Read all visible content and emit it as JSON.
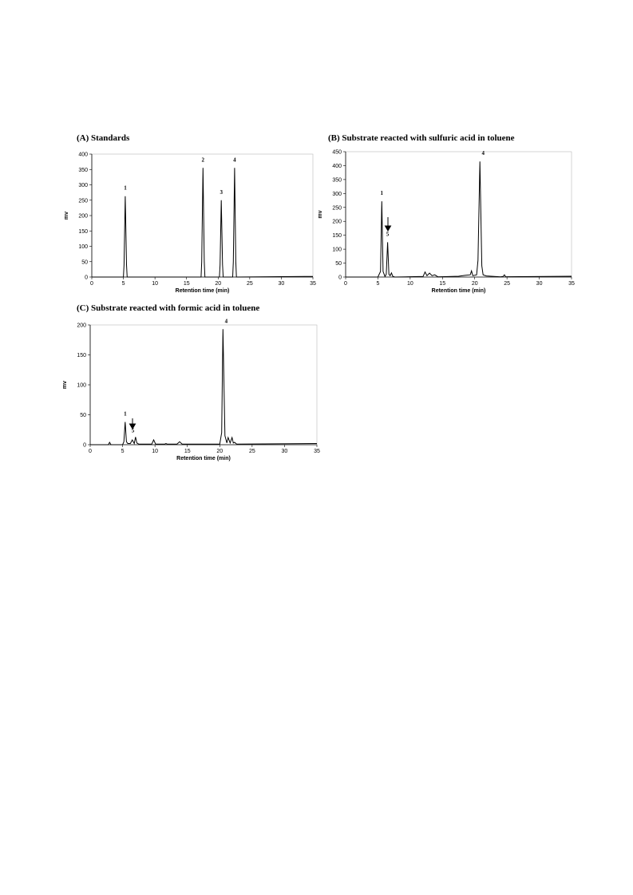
{
  "chart_data": [
    {
      "type": "line",
      "title": "(A) Standards",
      "xlabel": "Retention time (min)",
      "ylabel": "mv",
      "x": [
        0,
        5,
        5.1,
        5.3,
        5.5,
        5.6,
        17.3,
        17.4,
        17.6,
        17.8,
        17.9,
        20.2,
        20.3,
        20.5,
        20.7,
        20.8,
        22.3,
        22.4,
        22.6,
        22.8,
        22.9,
        35
      ],
      "values": [
        0,
        0,
        40,
        263,
        40,
        0,
        0,
        50,
        355,
        50,
        0,
        0,
        40,
        250,
        40,
        0,
        0,
        50,
        355,
        50,
        0,
        2
      ],
      "xlim": [
        0,
        35
      ],
      "ylim": [
        0,
        400
      ],
      "xticks": [
        0,
        5,
        10,
        15,
        20,
        25,
        30,
        35
      ],
      "yticks": [
        0,
        50,
        100,
        150,
        200,
        250,
        300,
        350,
        400
      ],
      "annotations": [
        {
          "label": "1",
          "x": 5.3,
          "y": 263
        },
        {
          "label": "2",
          "x": 17.6,
          "y": 355
        },
        {
          "label": "3",
          "x": 20.5,
          "y": 250
        },
        {
          "label": "4",
          "x": 22.6,
          "y": 355
        }
      ]
    },
    {
      "type": "line",
      "title": "(B) Substrate reacted with sulfuric acid in toluene",
      "xlabel": "Retention time (min)",
      "ylabel": "mv",
      "x": [
        0,
        5,
        5.4,
        5.6,
        5.8,
        6.1,
        6.3,
        6.5,
        6.7,
        6.9,
        7.1,
        7.3,
        7.6,
        12,
        12.3,
        12.6,
        13,
        13.4,
        13.8,
        14.3,
        17.5,
        18.5,
        19.3,
        19.5,
        19.7,
        20.3,
        20.5,
        20.8,
        21.1,
        21.3,
        21.8,
        24,
        24.4,
        24.6,
        24.8,
        35
      ],
      "values": [
        0,
        0,
        20,
        272,
        20,
        2,
        10,
        125,
        10,
        5,
        15,
        3,
        0,
        2,
        18,
        5,
        14,
        5,
        8,
        1,
        3,
        6,
        8,
        22,
        5,
        8,
        60,
        415,
        40,
        8,
        4,
        1,
        2,
        8,
        1,
        3
      ],
      "xlim": [
        0,
        35
      ],
      "ylim": [
        0,
        450
      ],
      "xticks": [
        0,
        5,
        10,
        15,
        20,
        25,
        30,
        35
      ],
      "yticks": [
        0,
        50,
        100,
        150,
        200,
        250,
        300,
        350,
        400,
        450
      ],
      "annotations": [
        {
          "label": "1",
          "x": 5.6,
          "y": 272
        },
        {
          "label": "5",
          "x": 6.5,
          "y": 125
        },
        {
          "label": "4",
          "x": 21.3,
          "y": 415
        }
      ]
    },
    {
      "type": "line",
      "title": "(C) Substrate reacted with formic acid in toluene",
      "xlabel": "Retention time (min)",
      "ylabel": "mv",
      "x": [
        0,
        2.8,
        3,
        3.2,
        5,
        5.2,
        5.4,
        5.6,
        5.8,
        6.2,
        6.5,
        6.8,
        7,
        7.2,
        7.5,
        9.5,
        9.8,
        10.1,
        11.5,
        11.7,
        11.9,
        13.4,
        13.8,
        14.2,
        20,
        20.3,
        20.5,
        20.8,
        21.1,
        21.3,
        21.6,
        21.9,
        22.1,
        22.3,
        22.6,
        35
      ],
      "values": [
        0,
        0,
        4,
        0,
        0,
        5,
        38,
        5,
        2,
        2,
        8,
        2,
        13,
        3,
        1,
        1,
        8,
        1,
        1,
        2,
        1,
        1,
        5,
        1,
        1,
        20,
        193,
        15,
        3,
        12,
        3,
        12,
        3,
        4,
        1,
        2
      ],
      "xlim": [
        0,
        35
      ],
      "ylim": [
        0,
        200
      ],
      "xticks": [
        0,
        5,
        10,
        15,
        20,
        25,
        30,
        35
      ],
      "yticks": [
        0,
        50,
        100,
        150,
        200
      ],
      "annotations": [
        {
          "label": "1",
          "x": 5.4,
          "y": 38
        },
        {
          "label": "5",
          "x": 6.6,
          "y": 10
        },
        {
          "label": "4",
          "x": 21,
          "y": 193
        }
      ]
    }
  ]
}
